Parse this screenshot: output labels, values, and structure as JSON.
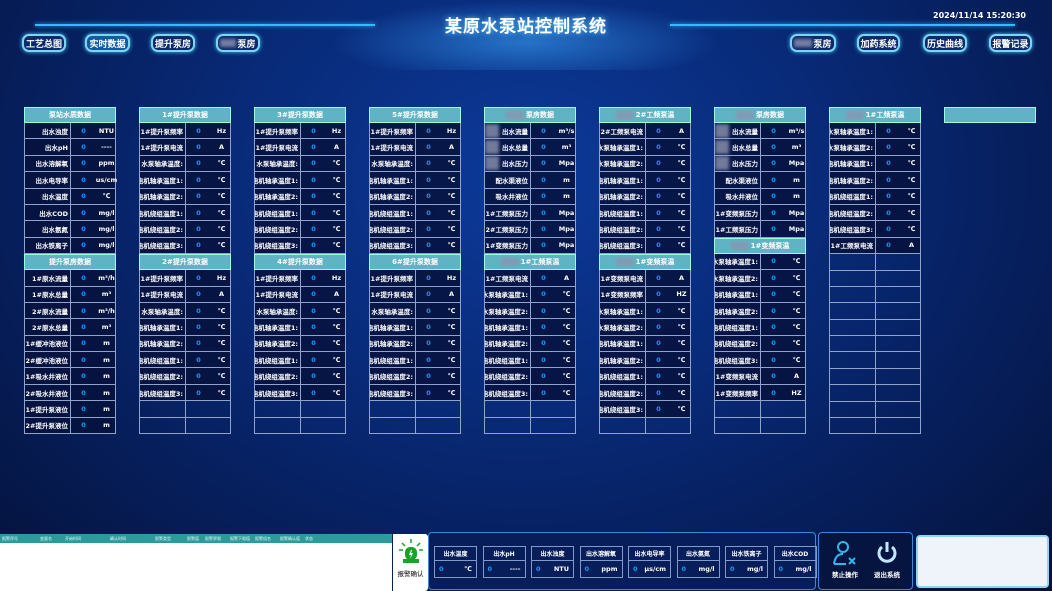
{
  "header": {
    "title": "某原水泵站控制系统",
    "datetime": "2024/11/14 15:20:30"
  },
  "nav_left": [
    {
      "label": "工艺总图",
      "active": false
    },
    {
      "label": "实时数据",
      "active": true
    },
    {
      "label": "提升泵房",
      "active": false
    },
    {
      "label": "泵房",
      "active": false,
      "redacted": true
    }
  ],
  "nav_right": [
    {
      "label": "泵房",
      "redacted": true
    },
    {
      "label": "加药系统"
    },
    {
      "label": "历史曲线"
    },
    {
      "label": "报警记录"
    }
  ],
  "colors": {
    "accent": "#5fb3c4",
    "value": "#1e9bff",
    "background": "#082a78"
  },
  "columns": [
    [
      {
        "title": "泵站水质数据",
        "rows": [
          [
            "出水浊度",
            "0",
            "NTU"
          ],
          [
            "出水pH",
            "0",
            "----"
          ],
          [
            "出水溶解氧",
            "0",
            "ppm"
          ],
          [
            "出水电导率",
            "0",
            "us/cm"
          ],
          [
            "出水温度",
            "0",
            "℃"
          ],
          [
            "出水COD",
            "0",
            "mg/l"
          ],
          [
            "出水氨氮",
            "0",
            "mg/l"
          ],
          [
            "出水铁离子",
            "0",
            "mg/l"
          ]
        ],
        "empty": 0
      },
      {
        "title": "提升泵房数据",
        "rows": [
          [
            "1#原水流量",
            "0",
            "m³/h"
          ],
          [
            "1#原水总量",
            "0",
            "m³"
          ],
          [
            "2#原水流量",
            "0",
            "m³/h"
          ],
          [
            "2#原水总量",
            "0",
            "m³"
          ],
          [
            "1#缓冲池液位",
            "0",
            "m"
          ],
          [
            "2#缓冲池液位",
            "0",
            "m"
          ],
          [
            "1#吸水井液位",
            "0",
            "m"
          ],
          [
            "2#吸水井液位",
            "0",
            "m"
          ],
          [
            "1#提升泵液位",
            "0",
            "m"
          ],
          [
            "2#提升泵液位",
            "0",
            "m"
          ]
        ],
        "empty": 0
      }
    ],
    [
      {
        "title": "1#提升泵数据",
        "rows": [
          [
            "1#提升泵频率",
            "0",
            "Hz"
          ],
          [
            "1#提升泵电流",
            "0",
            "A"
          ],
          [
            "水泵轴承温度:",
            "0",
            "℃"
          ],
          [
            "电机轴承温度1:",
            "0",
            "℃"
          ],
          [
            "电机轴承温度2:",
            "0",
            "℃"
          ],
          [
            "电机绕组温度1:",
            "0",
            "℃"
          ],
          [
            "电机绕组温度2:",
            "0",
            "℃"
          ],
          [
            "电机绕组温度3:",
            "0",
            "℃"
          ]
        ],
        "empty": 0
      },
      {
        "title": "2#提升泵数据",
        "rows": [
          [
            "1#提升泵频率",
            "0",
            "Hz"
          ],
          [
            "1#提升泵电流",
            "0",
            "A"
          ],
          [
            "水泵轴承温度:",
            "0",
            "℃"
          ],
          [
            "电机轴承温度1:",
            "0",
            "℃"
          ],
          [
            "电机轴承温度2:",
            "0",
            "℃"
          ],
          [
            "电机绕组温度1:",
            "0",
            "℃"
          ],
          [
            "电机绕组温度2:",
            "0",
            "℃"
          ],
          [
            "电机绕组温度3:",
            "0",
            "℃"
          ]
        ],
        "empty": 2
      }
    ],
    [
      {
        "title": "3#提升泵数据",
        "rows": [
          [
            "1#提升泵频率",
            "0",
            "Hz"
          ],
          [
            "1#提升泵电流",
            "0",
            "A"
          ],
          [
            "水泵轴承温度:",
            "0",
            "℃"
          ],
          [
            "电机轴承温度1:",
            "0",
            "℃"
          ],
          [
            "电机轴承温度2:",
            "0",
            "℃"
          ],
          [
            "电机绕组温度1:",
            "0",
            "℃"
          ],
          [
            "电机绕组温度2:",
            "0",
            "℃"
          ],
          [
            "电机绕组温度3:",
            "0",
            "℃"
          ]
        ],
        "empty": 0
      },
      {
        "title": "4#提升泵数据",
        "rows": [
          [
            "1#提升泵频率",
            "0",
            "Hz"
          ],
          [
            "1#提升泵电流",
            "0",
            "A"
          ],
          [
            "水泵轴承温度:",
            "0",
            "℃"
          ],
          [
            "电机轴承温度1:",
            "0",
            "℃"
          ],
          [
            "电机轴承温度2:",
            "0",
            "℃"
          ],
          [
            "电机绕组温度1:",
            "0",
            "℃"
          ],
          [
            "电机绕组温度2:",
            "0",
            "℃"
          ],
          [
            "电机绕组温度3:",
            "0",
            "℃"
          ]
        ],
        "empty": 2
      }
    ],
    [
      {
        "title": "5#提升泵数据",
        "rows": [
          [
            "1#提升泵频率",
            "0",
            "Hz"
          ],
          [
            "1#提升泵电流",
            "0",
            "A"
          ],
          [
            "水泵轴承温度:",
            "0",
            "℃"
          ],
          [
            "电机轴承温度1:",
            "0",
            "℃"
          ],
          [
            "电机轴承温度2:",
            "0",
            "℃"
          ],
          [
            "电机绕组温度1:",
            "0",
            "℃"
          ],
          [
            "电机绕组温度2:",
            "0",
            "℃"
          ],
          [
            "电机绕组温度3:",
            "0",
            "℃"
          ]
        ],
        "empty": 0
      },
      {
        "title": "6#提升泵数据",
        "rows": [
          [
            "1#提升泵频率",
            "0",
            "Hz"
          ],
          [
            "1#提升泵电流",
            "0",
            "A"
          ],
          [
            "水泵轴承温度:",
            "0",
            "℃"
          ],
          [
            "电机轴承温度1:",
            "0",
            "℃"
          ],
          [
            "电机轴承温度2:",
            "0",
            "℃"
          ],
          [
            "电机绕组温度1:",
            "0",
            "℃"
          ],
          [
            "电机绕组温度2:",
            "0",
            "℃"
          ],
          [
            "电机绕组温度3:",
            "0",
            "℃"
          ]
        ],
        "empty": 2
      }
    ],
    [
      {
        "title": "泵房数据",
        "redacted": true,
        "redact_rows": 3,
        "rows": [
          [
            "出水流量",
            "0",
            "m³/s"
          ],
          [
            "出水总量",
            "0",
            "m³"
          ],
          [
            "出水压力",
            "0",
            "Mpa"
          ],
          [
            "配水渠液位",
            "0",
            "m"
          ],
          [
            "吸水井液位",
            "0",
            "m"
          ],
          [
            "1#工频泵压力",
            "0",
            "Mpa"
          ],
          [
            "2#工频泵压力",
            "0",
            "Mpa"
          ],
          [
            "1#变频泵压力",
            "0",
            "Mpa"
          ]
        ],
        "empty": 0
      },
      {
        "title": "1#工频泵温",
        "redacted": true,
        "rows": [
          [
            "1#工频泵电流",
            "0",
            "A"
          ],
          [
            "水泵轴承温度1:",
            "0",
            "℃"
          ],
          [
            "水泵轴承温度2:",
            "0",
            "℃"
          ],
          [
            "电机轴承温度1:",
            "0",
            "℃"
          ],
          [
            "电机轴承温度2:",
            "0",
            "℃"
          ],
          [
            "电机绕组温度1:",
            "0",
            "℃"
          ],
          [
            "电机绕组温度2:",
            "0",
            "℃"
          ],
          [
            "电机绕组温度3:",
            "0",
            "℃"
          ]
        ],
        "empty": 2
      }
    ],
    [
      {
        "title": "2#工频泵温",
        "redacted": true,
        "rows": [
          [
            "2#工频泵电流",
            "0",
            "A"
          ],
          [
            "水泵轴承温度1:",
            "0",
            "℃"
          ],
          [
            "水泵轴承温度2:",
            "0",
            "℃"
          ],
          [
            "电机轴承温度1:",
            "0",
            "℃"
          ],
          [
            "电机轴承温度2:",
            "0",
            "℃"
          ],
          [
            "电机绕组温度1:",
            "0",
            "℃"
          ],
          [
            "电机绕组温度2:",
            "0",
            "℃"
          ],
          [
            "电机绕组温度3:",
            "0",
            "℃"
          ]
        ],
        "empty": 0
      },
      {
        "title": "1#变频泵温",
        "redacted": true,
        "rows": [
          [
            "1#变频泵电流",
            "0",
            "A"
          ],
          [
            "1#变频泵频率",
            "0",
            "HZ"
          ],
          [
            "水泵轴承温度1:",
            "0",
            "℃"
          ],
          [
            "水泵轴承温度2:",
            "0",
            "℃"
          ],
          [
            "电机轴承温度1:",
            "0",
            "℃"
          ],
          [
            "电机轴承温度2:",
            "0",
            "℃"
          ],
          [
            "电机绕组温度1:",
            "0",
            "℃"
          ],
          [
            "电机绕组温度2:",
            "0",
            "℃"
          ],
          [
            "电机绕组温度3:",
            "0",
            "℃"
          ]
        ],
        "empty": 1
      }
    ],
    [
      {
        "title": "泵房数据",
        "redacted": true,
        "redact_rows": 3,
        "rows": [
          [
            "出水流量",
            "0",
            "m³/s"
          ],
          [
            "出水总量",
            "0",
            "m³"
          ],
          [
            "出水压力",
            "0",
            "Mpa"
          ],
          [
            "配水渠液位",
            "0",
            "m"
          ],
          [
            "吸水井液位",
            "0",
            "m"
          ],
          [
            "1#变频泵压力",
            "0",
            "Mpa"
          ],
          [
            "1#工频泵压力",
            "0",
            "Mpa"
          ]
        ],
        "empty": 0
      },
      {
        "title": "1#变频泵温",
        "redacted": true,
        "rows": [
          [
            "水泵轴承温度1:",
            "0",
            "℃"
          ],
          [
            "水泵轴承温度2:",
            "0",
            "℃"
          ],
          [
            "电机轴承温度1:",
            "0",
            "℃"
          ],
          [
            "电机轴承温度2:",
            "0",
            "℃"
          ],
          [
            "电机绕组温度1:",
            "0",
            "℃"
          ],
          [
            "电机绕组温度2:",
            "0",
            "℃"
          ],
          [
            "电机绕组温度3:",
            "0",
            "℃"
          ],
          [
            "1#变频泵电流",
            "0",
            "A"
          ],
          [
            "1#变频泵频率",
            "0",
            "HZ"
          ]
        ],
        "empty": 2
      }
    ],
    [
      {
        "title": "1#工频泵温",
        "redacted": true,
        "rows": [
          [
            "水泵轴承温度1:",
            "0",
            "℃"
          ],
          [
            "水泵轴承温度2:",
            "0",
            "℃"
          ],
          [
            "电机轴承温度1:",
            "0",
            "℃"
          ],
          [
            "电机轴承温度2:",
            "0",
            "℃"
          ],
          [
            "电机绕组温度1:",
            "0",
            "℃"
          ],
          [
            "电机绕组温度2:",
            "0",
            "℃"
          ],
          [
            "电机绕组温度3:",
            "0",
            "℃"
          ],
          [
            "1#工频泵电流",
            "0",
            "A"
          ]
        ],
        "empty": 11
      }
    ],
    [
      {
        "title": "",
        "rows": [],
        "empty": 0
      }
    ]
  ],
  "alarm": {
    "columns": [
      "报警序号",
      "变量名",
      "开始时间",
      "确认时间",
      "报警类型",
      "报警值",
      "报警界限",
      "报警下限值",
      "报警组名",
      "报警确认值",
      "状态"
    ],
    "ack_label": "报警确认"
  },
  "quality": [
    {
      "label": "出水温度",
      "value": "0",
      "unit": "℃"
    },
    {
      "label": "出水pH",
      "value": "0",
      "unit": "----"
    },
    {
      "label": "出水浊度",
      "value": "0",
      "unit": "NTU"
    },
    {
      "label": "出水溶解氧",
      "value": "0",
      "unit": "ppm"
    },
    {
      "label": "出水电导率",
      "value": "0",
      "unit": "μs/cm"
    },
    {
      "label": "出水氨氮",
      "value": "0",
      "unit": "mg/l"
    },
    {
      "label": "出水铁离子",
      "value": "0",
      "unit": "mg/l"
    },
    {
      "label": "出水COD",
      "value": "0",
      "unit": "mg/l"
    }
  ],
  "ops": {
    "disable_label": "禁止操作",
    "exit_label": "退出系统"
  }
}
